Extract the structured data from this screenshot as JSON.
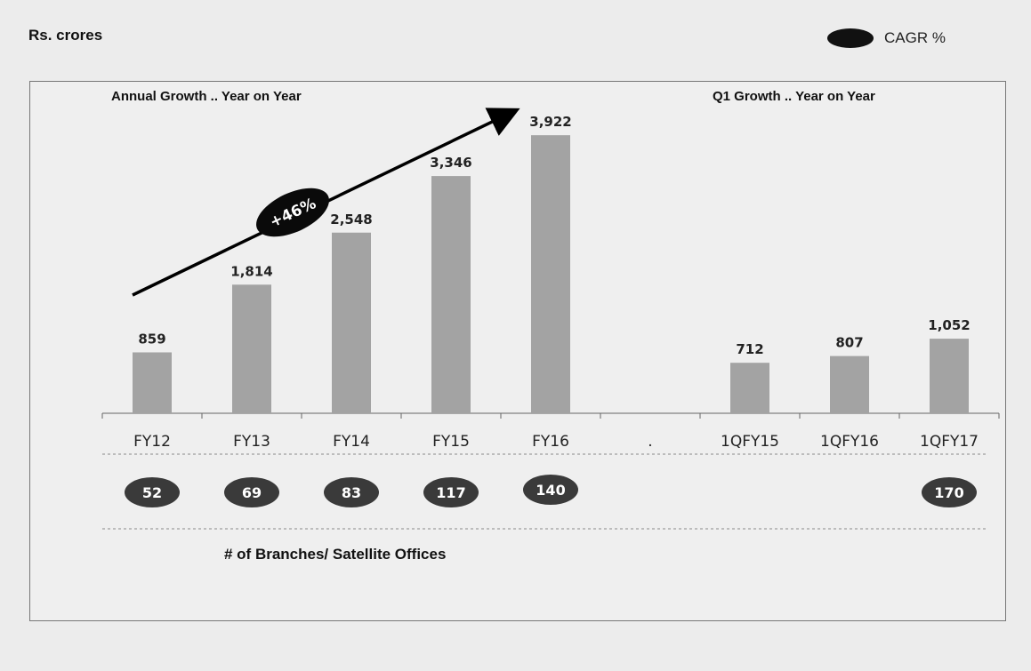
{
  "header": {
    "unit_label": "Rs. crores",
    "legend_label": "CAGR %"
  },
  "sections": {
    "annual_title": "Annual Growth .. Year on Year",
    "quarterly_title": "Q1 Growth .. Year on Year"
  },
  "footnote": "# of Branches/ Satellite Offices",
  "colors": {
    "bar": "#a3a3a3",
    "badge": "#3a3a3a",
    "arrow": "#000000"
  },
  "chart_data": {
    "type": "bar",
    "categories": [
      "FY12",
      "FY13",
      "FY14",
      "FY15",
      "FY16",
      ".",
      "1QFY15",
      "1QFY16",
      "1QFY17"
    ],
    "values": [
      859,
      1814,
      2548,
      3346,
      3922,
      null,
      712,
      807,
      1052
    ],
    "value_labels": [
      "859",
      "1,814",
      "2,548",
      "3,346",
      "3,922",
      "",
      "712",
      "807",
      "1,052"
    ],
    "branches": [
      "52",
      "69",
      "83",
      "117",
      "140",
      "",
      "",
      "",
      "170"
    ],
    "cagr_annotation": "+46%",
    "title": "",
    "xlabel": "",
    "ylabel": "",
    "ylim": [
      0,
      4300
    ],
    "grid": false
  }
}
